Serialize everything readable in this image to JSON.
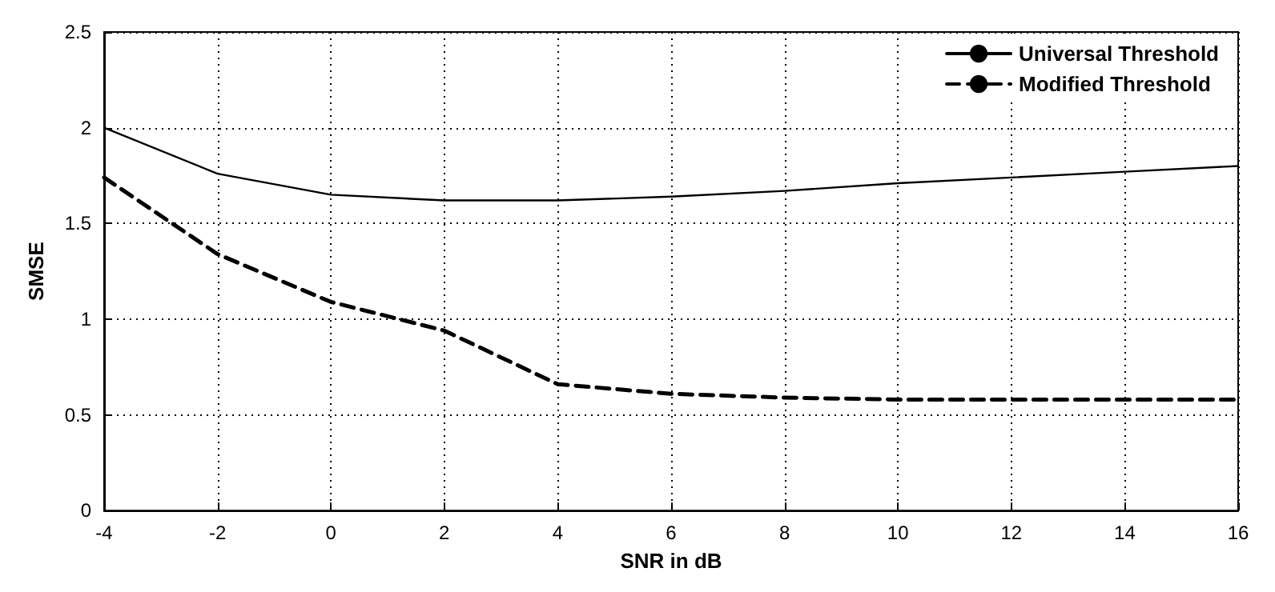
{
  "chart_data": {
    "type": "line",
    "xlabel": "SNR in dB",
    "ylabel": "SMSE",
    "x": [
      -4,
      -2,
      0,
      2,
      4,
      6,
      8,
      10,
      12,
      14,
      16
    ],
    "series": [
      {
        "name": "Universal Threshold",
        "color": "#000000",
        "line_style": "solid",
        "values": [
          2.0,
          1.76,
          1.65,
          1.62,
          1.62,
          1.64,
          1.67,
          1.71,
          1.74,
          1.77,
          1.8
        ]
      },
      {
        "name": "Modified Threshold",
        "color": "#000000",
        "line_style": "dashed",
        "values": [
          1.74,
          1.34,
          1.09,
          0.94,
          0.66,
          0.61,
          0.59,
          0.58,
          0.58,
          0.58,
          0.58
        ]
      }
    ],
    "xlim": [
      -4,
      16
    ],
    "xticks": [
      -4,
      -2,
      0,
      2,
      4,
      6,
      8,
      10,
      12,
      14,
      16
    ],
    "ylim": [
      0,
      2.5
    ],
    "yticks": [
      0,
      0.5,
      1,
      1.5,
      2,
      2.5
    ],
    "grid": true,
    "legend": "top right",
    "marker": "none"
  }
}
